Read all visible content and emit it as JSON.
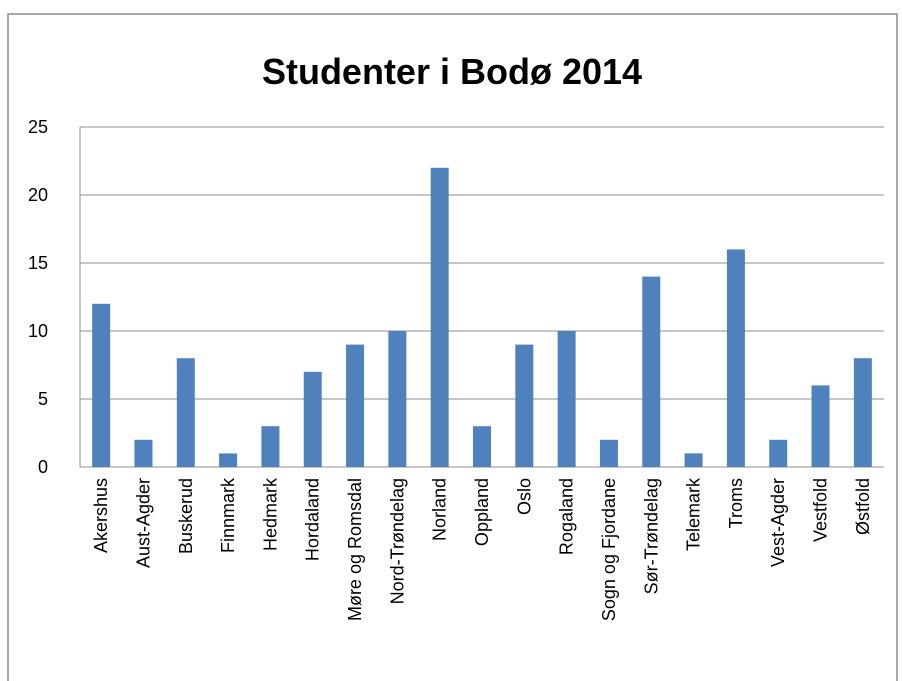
{
  "chart_data": {
    "type": "bar",
    "title": "Studenter i Bodø 2014",
    "categories": [
      "Akershus",
      "Aust-Agder",
      "Buskerud",
      "Finnmark",
      "Hedmark",
      "Hordaland",
      "Møre og Romsdal",
      "Nord-Trøndelag",
      "Norland",
      "Oppland",
      "Oslo",
      "Rogaland",
      "Sogn og Fjordane",
      "Sør-Trøndelag",
      "Telemark",
      "Troms",
      "Vest-Agder",
      "Vestfold",
      "Østfold"
    ],
    "values": [
      12,
      2,
      8,
      1,
      3,
      7,
      9,
      10,
      22,
      3,
      9,
      10,
      2,
      14,
      1,
      16,
      2,
      6,
      8
    ],
    "color": "#4f81bd",
    "ylim": [
      0,
      25
    ],
    "yticks": [
      0,
      5,
      10,
      15,
      20,
      25
    ],
    "grid": true
  }
}
